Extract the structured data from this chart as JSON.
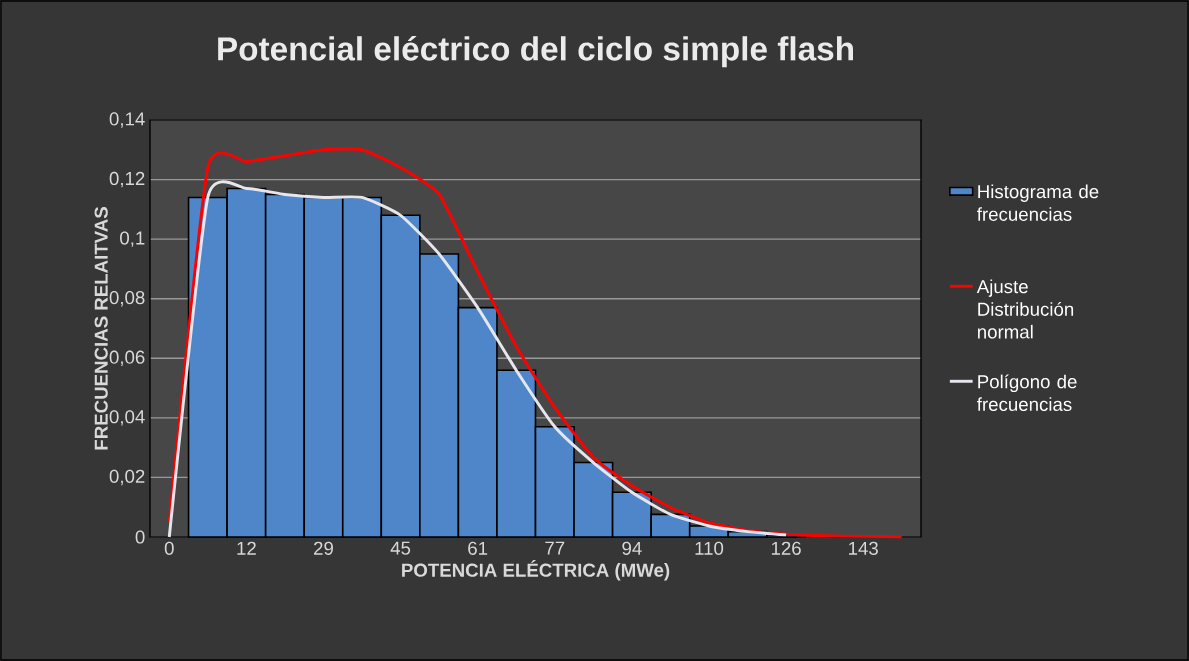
{
  "chart_data": {
    "type": "bar",
    "title": "Potencial eléctrico del ciclo simple flash",
    "xlabel": "POTENCIA ELÉCTRICA (MWe)",
    "ylabel": "FRECUENCIAS RELAITVAS",
    "categories": [
      "0",
      null,
      "12",
      null,
      "29",
      null,
      "45",
      null,
      "61",
      null,
      "77",
      null,
      "94",
      null,
      "110",
      null,
      "126",
      null,
      "143",
      null
    ],
    "series": [
      {
        "name": "Histograma de frecuencias",
        "type": "bar",
        "color": "#4f85c9",
        "values": [
          null,
          0.114,
          0.117,
          0.115,
          0.114,
          0.114,
          0.108,
          0.095,
          0.077,
          0.056,
          0.037,
          0.025,
          0.015,
          0.0076,
          0.0037,
          0.0018,
          0.0007,
          null,
          null,
          null
        ]
      },
      {
        "name": "Ajuste Distribución normal",
        "type": "line",
        "color": "#ff0000",
        "values": [
          0.005,
          0.124,
          0.126,
          0.128,
          0.13,
          0.13,
          0.124,
          0.115,
          0.089,
          0.064,
          0.0435,
          0.0267,
          0.0172,
          0.0099,
          0.0048,
          0.0022,
          0.0009,
          0.0004,
          0.0002,
          0.0001
        ]
      },
      {
        "name": "Polígono de frecuencias",
        "type": "line",
        "color": "#e6e6ee",
        "values": [
          0,
          0.114,
          0.117,
          0.115,
          0.114,
          0.114,
          0.108,
          0.095,
          0.077,
          0.056,
          0.037,
          0.025,
          0.015,
          0.0076,
          0.0037,
          0.0018,
          0.0007,
          null,
          null,
          null
        ]
      }
    ],
    "ylim": [
      0,
      0.14
    ],
    "yticks": [
      0,
      {
        "value": 0.02,
        "label": "0,02"
      },
      {
        "value": 0.04,
        "label": "0,04"
      },
      {
        "value": 0.06,
        "label": "0,06"
      },
      {
        "value": 0.08,
        "label": "0,08"
      },
      {
        "value": 0.1,
        "label": "0,1"
      },
      {
        "value": 0.12,
        "label": "0,12"
      },
      {
        "value": 0.14,
        "label": "0,14"
      }
    ],
    "grid": "y",
    "legend": "right"
  }
}
